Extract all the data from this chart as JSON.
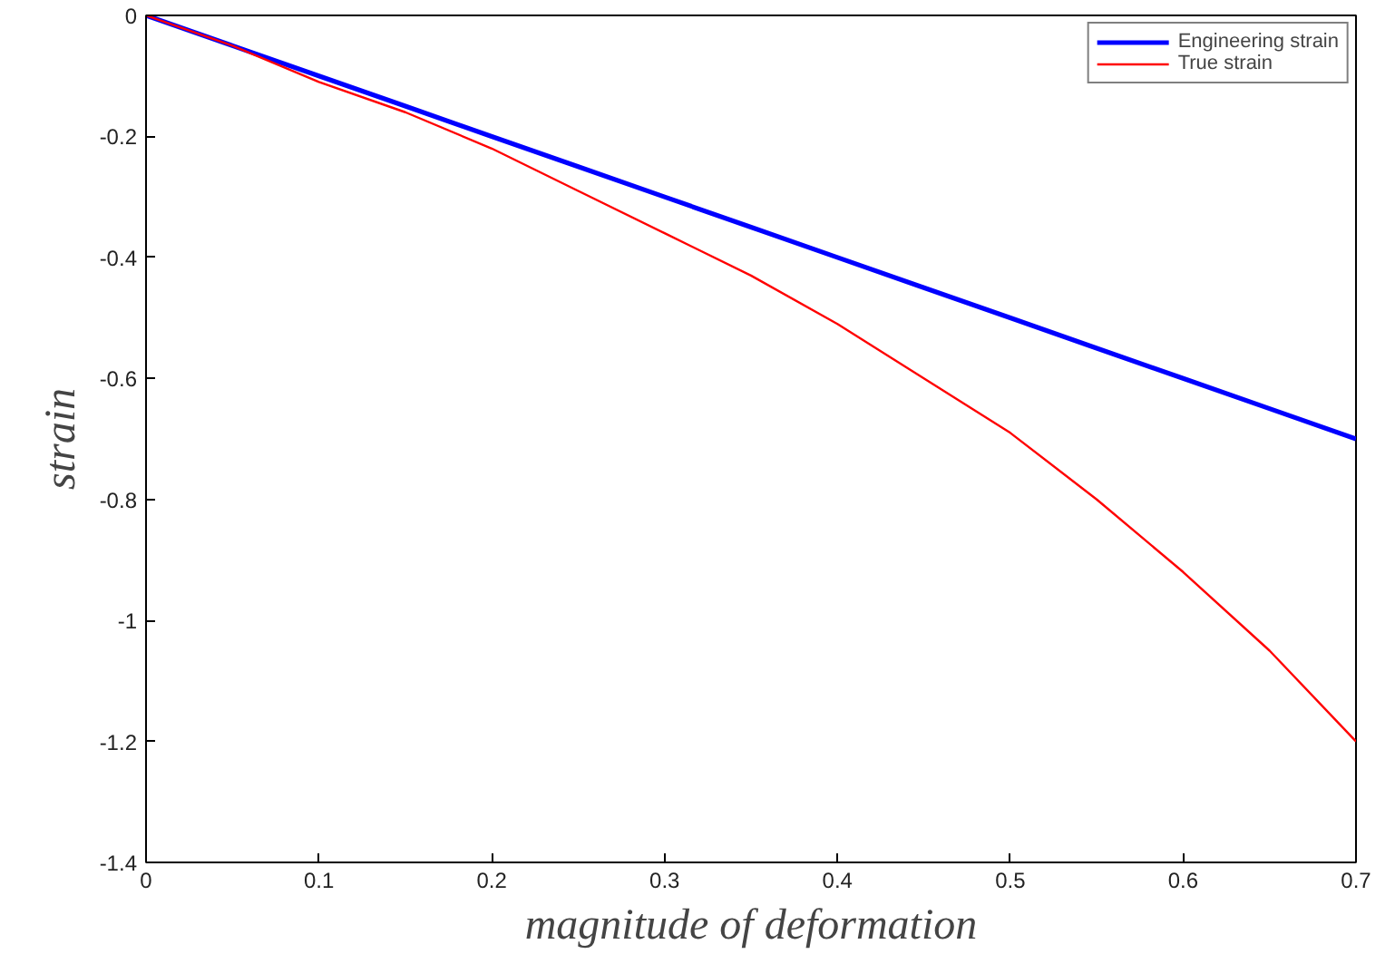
{
  "chart_data": {
    "type": "line",
    "xlabel": "magnitude of deformation",
    "ylabel": "strain",
    "x": [
      0,
      0.05,
      0.1,
      0.15,
      0.2,
      0.25,
      0.3,
      0.35,
      0.4,
      0.45,
      0.5,
      0.55,
      0.6,
      0.65,
      0.7
    ],
    "series": [
      {
        "name": "Engineering strain",
        "color": "#0000ff",
        "values": [
          0,
          -0.05,
          -0.1,
          -0.15,
          -0.2,
          -0.25,
          -0.3,
          -0.35,
          -0.4,
          -0.45,
          -0.5,
          -0.55,
          -0.6,
          -0.65,
          -0.7
        ]
      },
      {
        "name": "True strain",
        "color": "#ff0000",
        "values": [
          0,
          -0.05,
          -0.11,
          -0.16,
          -0.22,
          -0.29,
          -0.36,
          -0.43,
          -0.51,
          -0.6,
          -0.69,
          -0.8,
          -0.92,
          -1.05,
          -1.2
        ]
      }
    ],
    "xlim": [
      0,
      0.7
    ],
    "ylim": [
      -1.4,
      0
    ],
    "xticks": [
      0,
      0.1,
      0.2,
      0.3,
      0.4,
      0.5,
      0.6,
      0.7
    ],
    "yticks": [
      -1.4,
      -1.2,
      -1,
      -0.8,
      -0.6,
      -0.4,
      -0.2,
      0
    ],
    "grid": false,
    "legend": "top right",
    "marker": "none",
    "line_style": "solid"
  }
}
